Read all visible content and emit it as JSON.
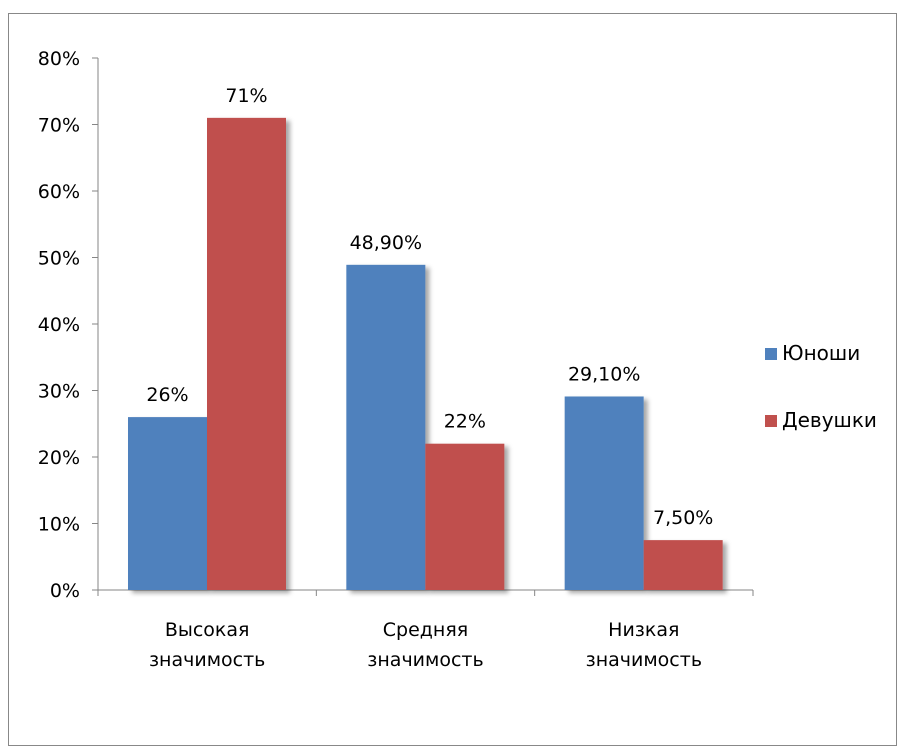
{
  "chart_data": {
    "type": "bar",
    "title": "",
    "xlabel": "",
    "ylabel": "",
    "ylim": [
      0,
      0.8
    ],
    "yticks": [
      {
        "value": 0.0,
        "label": "0%"
      },
      {
        "value": 0.1,
        "label": "10%"
      },
      {
        "value": 0.2,
        "label": "20%"
      },
      {
        "value": 0.3,
        "label": "30%"
      },
      {
        "value": 0.4,
        "label": "40%"
      },
      {
        "value": 0.5,
        "label": "50%"
      },
      {
        "value": 0.6,
        "label": "60%"
      },
      {
        "value": 0.7,
        "label": "70%"
      },
      {
        "value": 0.8,
        "label": "80%"
      }
    ],
    "grid": false,
    "legend_position": "right",
    "categories": [
      [
        "Высокая",
        "значимость"
      ],
      [
        "Средняя",
        "значимость"
      ],
      [
        "Низкая",
        "значимость"
      ]
    ],
    "series": [
      {
        "name": "Юноши",
        "color": "#4F81BD",
        "values": [
          0.26,
          0.489,
          0.291
        ],
        "labels": [
          "26%",
          "48,90%",
          "29,10%"
        ]
      },
      {
        "name": "Девушки",
        "color": "#C0504D",
        "values": [
          0.71,
          0.22,
          0.075
        ],
        "labels": [
          "71%",
          "22%",
          "7,50%"
        ]
      }
    ]
  }
}
